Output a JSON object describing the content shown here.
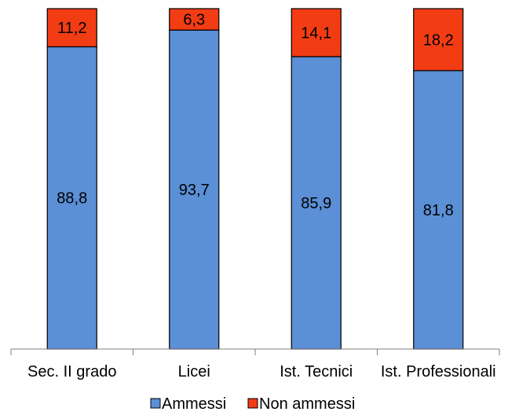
{
  "chart_data": {
    "type": "stacked-bar-100",
    "categories": [
      "Sec. II grado",
      "Licei",
      "Ist. Tecnici",
      "Ist. Professionali"
    ],
    "series": [
      {
        "name": "Ammessi",
        "values": [
          "88,8",
          "93,7",
          "85,9",
          "81,8"
        ],
        "color": "#5b8fd6"
      },
      {
        "name": "Non ammessi",
        "values": [
          "11,2",
          "6,3",
          "14,1",
          "18,2"
        ],
        "color": "#f23c14"
      }
    ],
    "ylim": [
      0,
      100
    ],
    "grid": false,
    "legend": "bottom"
  }
}
